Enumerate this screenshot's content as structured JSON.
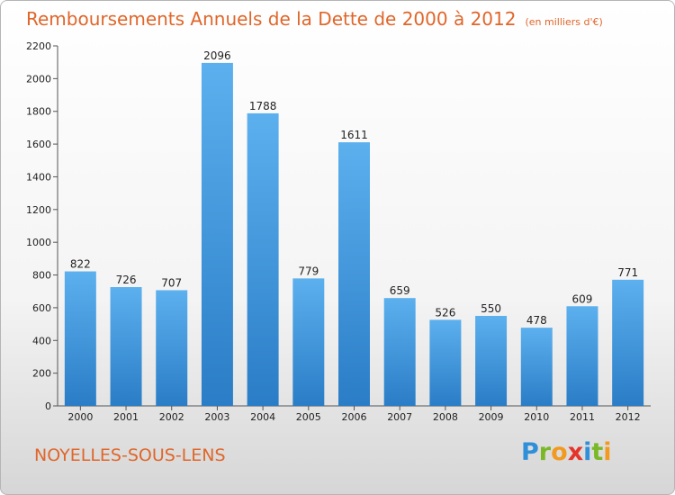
{
  "header": {
    "title": "Remboursements Annuels de la Dette de 2000 à 2012",
    "unit": "(en milliers d'€)"
  },
  "footer": {
    "city": "NOYELLES-SOUS-LENS",
    "logo": [
      "P",
      "r",
      "o",
      "x",
      "i",
      "t",
      "i"
    ],
    "logo_colors": [
      "#2f8fd8",
      "#7ab826",
      "#f29a1f",
      "#e5352b",
      "#2f8fd8",
      "#7ab826",
      "#f29a1f"
    ]
  },
  "chart_data": {
    "type": "bar",
    "title": "Remboursements Annuels de la Dette de 2000 à 2012",
    "categories": [
      "2000",
      "2001",
      "2002",
      "2003",
      "2004",
      "2005",
      "2006",
      "2007",
      "2008",
      "2009",
      "2010",
      "2011",
      "2012"
    ],
    "values": [
      822,
      726,
      707,
      2096,
      1788,
      779,
      1611,
      659,
      526,
      550,
      478,
      609,
      771
    ],
    "ylim": [
      0,
      2200
    ],
    "yticks": [
      0,
      200,
      400,
      600,
      800,
      1000,
      1200,
      1400,
      1600,
      1800,
      2000,
      2200
    ],
    "grid": false,
    "bar_color": "#3f95d6"
  }
}
